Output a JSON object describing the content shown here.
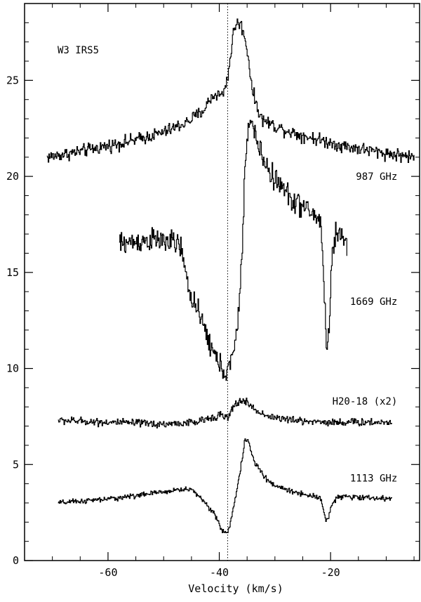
{
  "chart_data": {
    "type": "line",
    "title": "W3 IRS5",
    "xlabel": "Velocity (km/s)",
    "ylabel": "",
    "xlim": [
      -75,
      -4
    ],
    "ylim": [
      0,
      29
    ],
    "xticks": [
      -60,
      -40,
      -20
    ],
    "yticks": [
      0,
      5,
      10,
      15,
      20,
      25
    ],
    "xtick_labels": [
      "-60",
      "-40",
      "-20"
    ],
    "ytick_labels": [
      "0",
      "5",
      "10",
      "15",
      "20",
      "25"
    ],
    "reference_line": {
      "x": -38.5,
      "style": "dotted"
    },
    "grid": false,
    "series": [
      {
        "name": "987 GHz",
        "noise": 0.25,
        "label_at": [
          -8,
          20.0
        ],
        "x": [
          -71,
          -65,
          -60,
          -55,
          -50,
          -46,
          -43,
          -41.5,
          -40.5,
          -39.5,
          -38.5,
          -37.5,
          -37,
          -36.2,
          -35.5,
          -35,
          -34,
          -32.5,
          -30,
          -26,
          -22,
          -18,
          -14,
          -10,
          -5
        ],
        "y": [
          21.0,
          21.3,
          21.6,
          21.9,
          22.3,
          22.8,
          23.4,
          24.1,
          24.3,
          24.2,
          25.2,
          27.5,
          28.0,
          27.9,
          27.3,
          26.5,
          24.3,
          23.0,
          22.6,
          22.2,
          21.9,
          21.6,
          21.4,
          21.2,
          21.0
        ]
      },
      {
        "name": "1669 GHz",
        "noise": 0.45,
        "label_at": [
          -8,
          13.5
        ],
        "x": [
          -58,
          -55,
          -52,
          -49,
          -47,
          -46.5,
          -45.5,
          -44.5,
          -43.5,
          -42.5,
          -41.5,
          -40.5,
          -40,
          -39.5,
          -38.8,
          -38,
          -37,
          -36,
          -35.5,
          -35,
          -34.2,
          -33,
          -31,
          -29,
          -27,
          -25,
          -23,
          -21.8,
          -21.3,
          -20.8,
          -20.3,
          -19.8,
          -19,
          -18,
          -17
        ],
        "y": [
          16.5,
          16.6,
          16.7,
          16.6,
          16.4,
          15.5,
          14.0,
          13.5,
          12.5,
          12.0,
          11.0,
          10.5,
          10.2,
          10.0,
          9.8,
          10.2,
          11.5,
          15.5,
          20.0,
          22.5,
          22.8,
          21.5,
          20.2,
          19.5,
          18.8,
          18.4,
          18.0,
          17.6,
          15.0,
          11.0,
          12.0,
          16.0,
          17.2,
          16.8,
          16.5
        ]
      },
      {
        "name": "H20-18 (x2)",
        "noise": 0.15,
        "label_at": [
          -8,
          8.3
        ],
        "x": [
          -69,
          -60,
          -50,
          -44,
          -40,
          -38.5,
          -37.5,
          -36.5,
          -35.5,
          -34.5,
          -33.5,
          -31,
          -27,
          -20,
          -15,
          -9
        ],
        "y": [
          7.3,
          7.2,
          7.1,
          7.2,
          7.6,
          7.4,
          8.0,
          8.3,
          8.3,
          8.1,
          7.8,
          7.5,
          7.3,
          7.2,
          7.2,
          7.2
        ],
        "display_label": "H20-18 (x2)"
      },
      {
        "name": "1113 GHz",
        "noise": 0.1,
        "label_at": [
          -8,
          4.3
        ],
        "x": [
          -69,
          -60,
          -52,
          -47,
          -45,
          -43.5,
          -42,
          -41,
          -40,
          -39.5,
          -38.5,
          -38,
          -37,
          -36,
          -35.5,
          -35,
          -34.5,
          -33.5,
          -32.5,
          -31.5,
          -30,
          -27,
          -24,
          -22,
          -21.5,
          -21,
          -20.5,
          -20,
          -19,
          -15,
          -9
        ],
        "y": [
          3.0,
          3.2,
          3.5,
          3.7,
          3.7,
          3.3,
          2.8,
          2.5,
          1.8,
          1.5,
          1.5,
          2.0,
          3.5,
          5.2,
          6.2,
          6.3,
          5.8,
          5.0,
          4.6,
          4.2,
          3.9,
          3.6,
          3.4,
          3.3,
          3.0,
          2.1,
          2.1,
          2.8,
          3.3,
          3.3,
          3.2
        ]
      }
    ]
  }
}
